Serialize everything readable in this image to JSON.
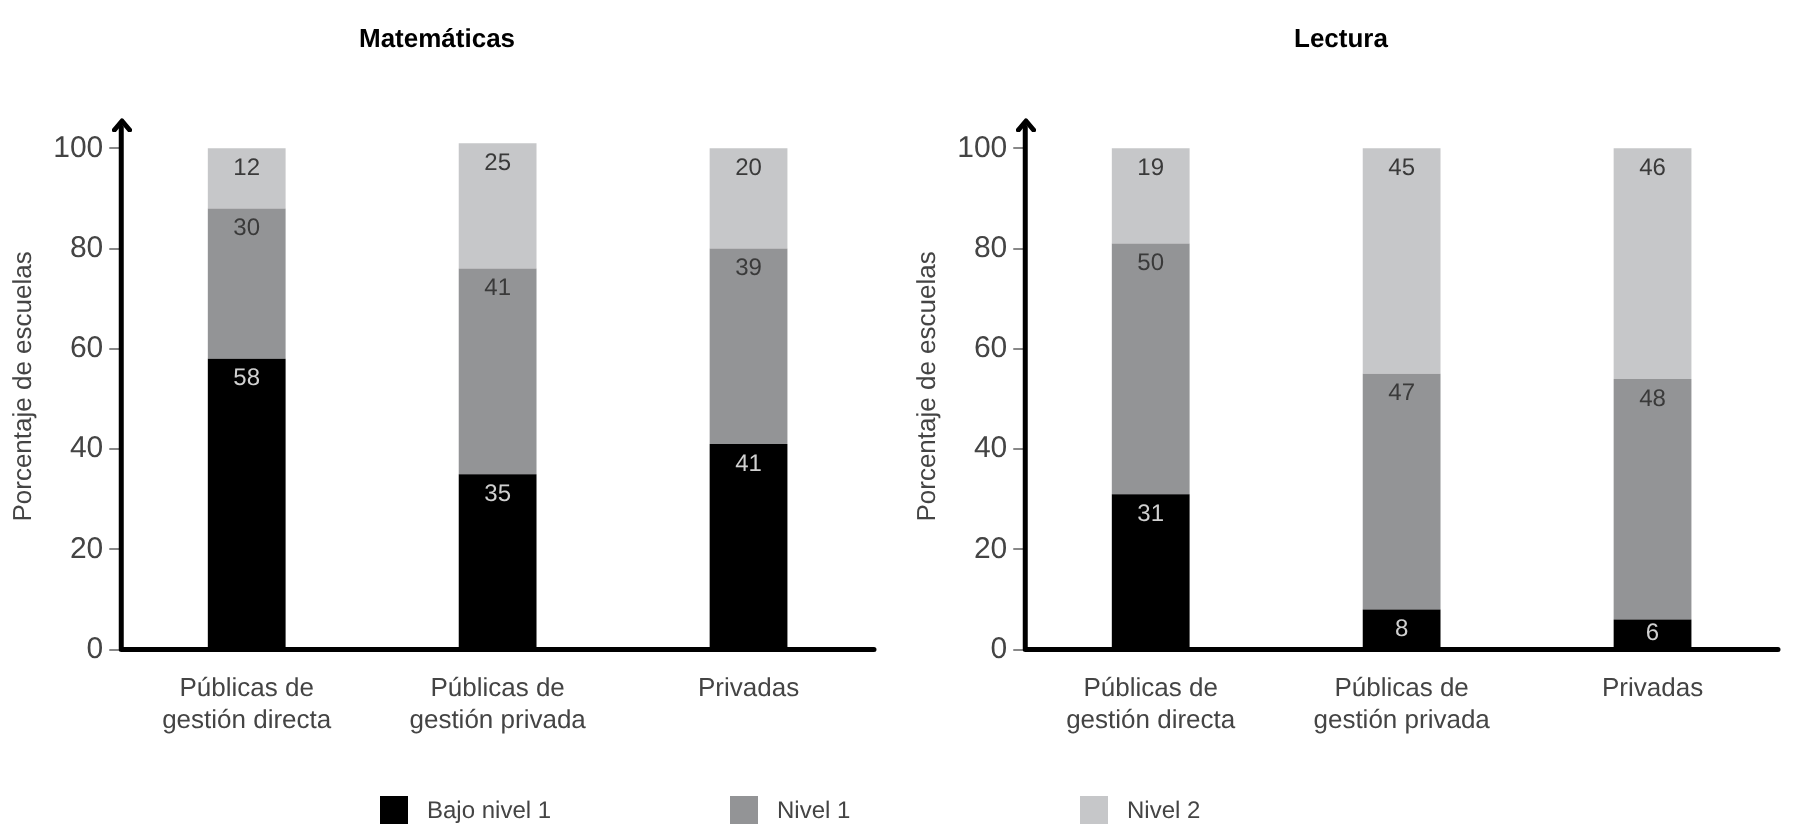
{
  "chart_data": [
    {
      "type": "bar",
      "title": "Matemáticas",
      "ylabel": "Porcentaje de escuelas",
      "categories": [
        "Públicas de gestión directa",
        "Públicas de gestión privada",
        "Privadas"
      ],
      "stacked": true,
      "ylim": [
        0,
        105
      ],
      "yticks": [
        0,
        20,
        40,
        60,
        80,
        100
      ],
      "grid": false,
      "legend": "bottom",
      "data_labels": true,
      "series": [
        {
          "name": "Bajo nivel 1",
          "color": "#000000",
          "values": [
            58,
            35,
            41
          ]
        },
        {
          "name": "Nivel 1",
          "color": "#939496",
          "values": [
            30,
            41,
            39
          ]
        },
        {
          "name": "Nivel 2",
          "color": "#c6c7c9",
          "values": [
            12,
            25,
            20
          ]
        }
      ]
    },
    {
      "type": "bar",
      "title": "Lectura",
      "ylabel": "Porcentaje de escuelas",
      "categories": [
        "Públicas de gestión directa",
        "Públicas de gestión privada",
        "Privadas"
      ],
      "stacked": true,
      "ylim": [
        0,
        105
      ],
      "yticks": [
        0,
        20,
        40,
        60,
        80,
        100
      ],
      "grid": false,
      "legend": "bottom",
      "data_labels": true,
      "series": [
        {
          "name": "Bajo nivel 1",
          "color": "#000000",
          "values": [
            31,
            8,
            6
          ]
        },
        {
          "name": "Nivel 1",
          "color": "#939496",
          "values": [
            50,
            47,
            48
          ]
        },
        {
          "name": "Nivel 2",
          "color": "#c6c7c9",
          "values": [
            19,
            45,
            46
          ]
        }
      ]
    }
  ]
}
